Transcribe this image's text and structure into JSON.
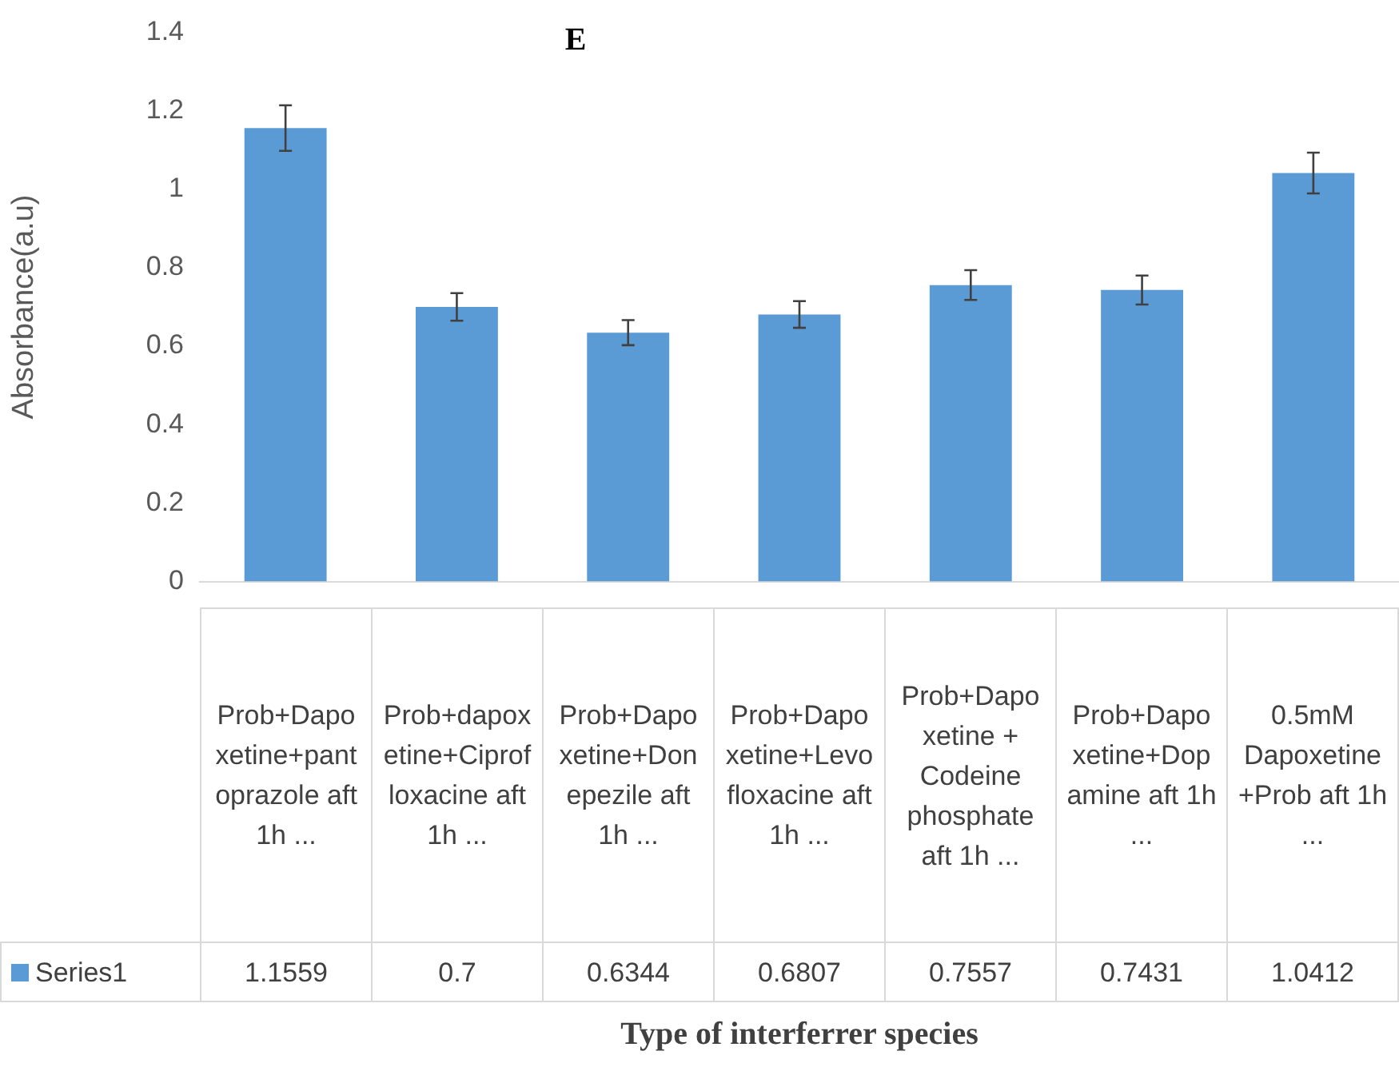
{
  "chart_data": {
    "type": "bar",
    "title": "E",
    "ylabel": "Absorbance(a.u)",
    "xlabel": "Type of interferrer species",
    "categories": [
      "Prob+Dapoxetine+pantoprazole aft 1h ...",
      "Prob+dapoxetine+Ciprofloxacine aft 1h ...",
      "Prob+Dapoxetine+Donepezile aft 1h ...",
      "Prob+Dapoxetine+Levofloxacine aft 1h ...",
      "Prob+Dapoxetine + Codeine phosphate aft 1h ...",
      "Prob+Dapoxetine+Dopamine aft 1h ...",
      "0.5mM Dapoxetine+Prob aft 1h ..."
    ],
    "series": [
      {
        "name": "Series1",
        "color": "#5b9bd5",
        "values": [
          1.1559,
          0.7,
          0.6344,
          0.6807,
          0.7557,
          0.7431,
          1.0412
        ],
        "errors": [
          0.058,
          0.035,
          0.032,
          0.034,
          0.038,
          0.037,
          0.052
        ]
      }
    ],
    "ylim": [
      0,
      1.4
    ],
    "yticks": [
      0,
      0.2,
      0.4,
      0.6,
      0.8,
      1,
      1.2,
      1.4
    ],
    "grid": false,
    "data_labels": true
  }
}
